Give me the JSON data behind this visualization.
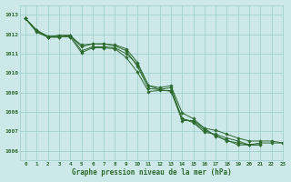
{
  "background_color": "#cce8e8",
  "grid_color": "#99cccc",
  "line_color": "#2d6a2d",
  "title": "Graphe pression niveau de la mer (hPa)",
  "xlim": [
    -0.5,
    23
  ],
  "ylim": [
    1005.5,
    1013.5
  ],
  "yticks": [
    1006,
    1007,
    1008,
    1009,
    1010,
    1011,
    1012,
    1013
  ],
  "xticks": [
    0,
    1,
    2,
    3,
    4,
    5,
    6,
    7,
    8,
    9,
    10,
    11,
    12,
    13,
    14,
    15,
    16,
    17,
    18,
    19,
    20,
    21,
    22,
    23
  ],
  "series": [
    [
      1012.8,
      1012.2,
      1011.9,
      1011.9,
      1011.85,
      1011.05,
      1011.3,
      1011.3,
      1011.25,
      1010.8,
      1010.05,
      1009.05,
      1009.1,
      1009.1,
      1007.55,
      1007.55,
      1007.15,
      1006.75,
      1006.55,
      1006.3,
      1006.3,
      1006.3,
      null,
      null
    ],
    [
      1012.8,
      1012.15,
      1011.85,
      1011.85,
      1011.9,
      1011.45,
      1011.5,
      1011.5,
      1011.4,
      1011.15,
      1010.35,
      1009.2,
      1009.15,
      1009.05,
      1007.65,
      1007.5,
      1007.05,
      1006.8,
      1006.5,
      1006.4,
      1006.3,
      1006.3,
      null,
      null
    ],
    [
      1012.8,
      1012.1,
      1011.85,
      1011.95,
      1011.95,
      1011.15,
      1011.35,
      1011.35,
      1011.3,
      1011.0,
      1010.45,
      1009.35,
      1009.15,
      1009.25,
      1007.65,
      1007.45,
      1006.95,
      1006.85,
      1006.65,
      1006.5,
      1006.3,
      1006.4,
      1006.4,
      1006.4
    ],
    [
      1012.8,
      1012.2,
      1011.85,
      1011.85,
      1011.95,
      1011.35,
      1011.5,
      1011.5,
      1011.45,
      1011.25,
      1010.55,
      1009.35,
      1009.25,
      1009.35,
      1007.95,
      1007.65,
      1007.15,
      1007.05,
      1006.85,
      1006.65,
      1006.5,
      1006.5,
      1006.5,
      1006.4
    ]
  ]
}
